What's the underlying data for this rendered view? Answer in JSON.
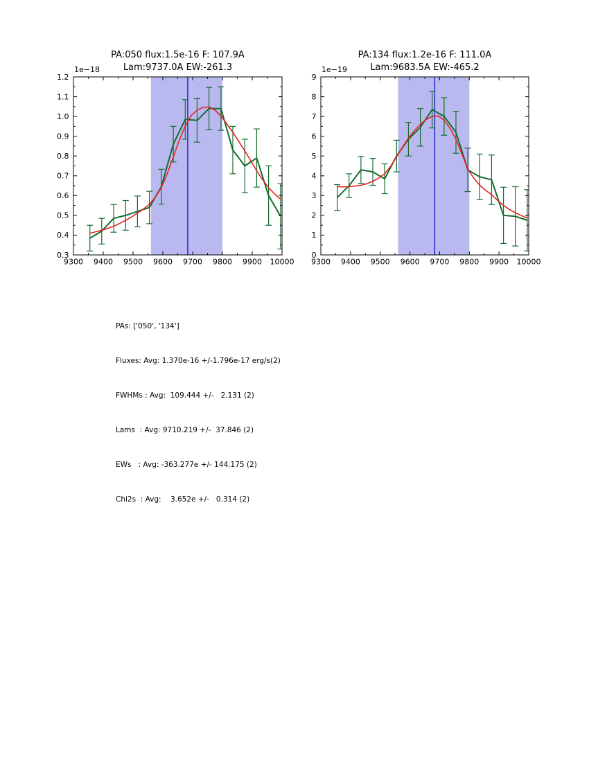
{
  "colors": {
    "background": "#ffffff",
    "data_line": "#146b2d",
    "fit_line": "#e62222",
    "band_fill": "#b9b9f0",
    "center_line": "#1111cc",
    "axis": "#000000"
  },
  "plots": [
    {
      "title_line1": "PA:050 flux:1.5e-16 F: 107.9A",
      "title_line2": "Lam:9737.0A EW:-261.3",
      "offset_label": "1e−18"
    },
    {
      "title_line1": "PA:134 flux:1.2e-16 F: 111.0A",
      "title_line2": "Lam:9683.5A EW:-465.2",
      "offset_label": "1e−19"
    }
  ],
  "stats": {
    "lines": [
      "PAs: ['050', '134']",
      "Fluxes: Avg: 1.370e-16 +/-1.796e-17 erg/s(2)",
      "FWHMs : Avg:  109.444 +/-   2.131 (2)",
      "Lams  : Avg: 9710.219 +/-  37.846 (2)",
      "EWs   : Avg: -363.277e +/- 144.175 (2)",
      "Chi2s  : Avg:    3.652e +/-   0.314 (2)"
    ]
  },
  "chart_data": [
    {
      "type": "line",
      "title": "PA:050 flux:1.5e-16 F: 107.9A Lam:9737.0A EW:-261.3",
      "xlabel": "",
      "ylabel": "",
      "y_offset_label": "1e−18",
      "xlim": [
        9300,
        10000
      ],
      "ylim": [
        0.3,
        1.2
      ],
      "xtick_values": [
        9300,
        9400,
        9500,
        9600,
        9700,
        9800,
        9900,
        10000
      ],
      "xtick_labels": [
        "9300",
        "9400",
        "9500",
        "9600",
        "9700",
        "9800",
        "9900",
        "10000"
      ],
      "ytick_values": [
        0.3,
        0.4,
        0.5,
        0.6,
        0.7,
        0.8,
        0.9,
        1.0,
        1.1,
        1.2
      ],
      "ytick_labels": [
        "0.3",
        "0.4",
        "0.5",
        "0.6",
        "0.7",
        "0.8",
        "0.9",
        "1.0",
        "1.1",
        "1.2"
      ],
      "minor_xtick_step": 50,
      "minor_ytick_step": 0.05,
      "shaded_band": [
        9560,
        9800
      ],
      "vline_x": 9683.5,
      "grid": false,
      "legend": "none",
      "x": [
        9355,
        9395,
        9435,
        9475,
        9515,
        9555,
        9595,
        9635,
        9675,
        9715,
        9755,
        9795,
        9835,
        9875,
        9915,
        9955,
        9995
      ],
      "series": [
        {
          "name": "observed spectrum (1e-18 erg/s/cm2/A)",
          "role": "data",
          "values": [
            0.385,
            0.42,
            0.485,
            0.5,
            0.52,
            0.54,
            0.645,
            0.86,
            0.985,
            0.98,
            1.04,
            1.04,
            0.83,
            0.75,
            0.79,
            0.6,
            0.495
          ],
          "yerr": [
            0.065,
            0.065,
            0.07,
            0.075,
            0.078,
            0.082,
            0.088,
            0.09,
            0.1,
            0.11,
            0.107,
            0.11,
            0.12,
            0.135,
            0.147,
            0.15,
            0.165
          ]
        },
        {
          "name": "gaussian fit",
          "role": "fit",
          "x": [
            9355,
            9375,
            9395,
            9415,
            9435,
            9455,
            9475,
            9495,
            9515,
            9535,
            9555,
            9575,
            9595,
            9615,
            9635,
            9655,
            9675,
            9695,
            9715,
            9735,
            9755,
            9775,
            9795,
            9815,
            9835,
            9855,
            9875,
            9895,
            9915,
            9935,
            9955,
            9975,
            9995
          ],
          "values": [
            0.41,
            0.417,
            0.425,
            0.434,
            0.445,
            0.459,
            0.475,
            0.492,
            0.512,
            0.532,
            0.556,
            0.592,
            0.64,
            0.712,
            0.795,
            0.878,
            0.952,
            1.005,
            1.032,
            1.046,
            1.048,
            1.032,
            1.002,
            0.962,
            0.92,
            0.874,
            0.826,
            0.776,
            0.726,
            0.68,
            0.64,
            0.608,
            0.582
          ]
        }
      ]
    },
    {
      "type": "line",
      "title": "PA:134 flux:1.2e-16 F: 111.0A Lam:9683.5A EW:-465.2",
      "xlabel": "",
      "ylabel": "",
      "y_offset_label": "1e−19",
      "xlim": [
        9300,
        10000
      ],
      "ylim": [
        0,
        9
      ],
      "xtick_values": [
        9300,
        9400,
        9500,
        9600,
        9700,
        9800,
        9900,
        10000
      ],
      "xtick_labels": [
        "9300",
        "9400",
        "9500",
        "9600",
        "9700",
        "9800",
        "9900",
        "10000"
      ],
      "ytick_values": [
        0,
        1,
        2,
        3,
        4,
        5,
        6,
        7,
        8,
        9
      ],
      "ytick_labels": [
        "0",
        "1",
        "2",
        "3",
        "4",
        "5",
        "6",
        "7",
        "8",
        "9"
      ],
      "minor_xtick_step": 50,
      "minor_ytick_step": 0.5,
      "shaded_band": [
        9560,
        9800
      ],
      "vline_x": 9683.5,
      "grid": false,
      "legend": "none",
      "x": [
        9355,
        9395,
        9435,
        9475,
        9515,
        9555,
        9595,
        9635,
        9675,
        9715,
        9755,
        9795,
        9835,
        9875,
        9915,
        9955,
        9995
      ],
      "series": [
        {
          "name": "observed spectrum (1e-19 erg/s/cm2/A)",
          "role": "data",
          "values": [
            2.9,
            3.5,
            4.3,
            4.2,
            3.85,
            5.0,
            5.85,
            6.45,
            7.35,
            7.0,
            6.2,
            4.3,
            3.95,
            3.8,
            2.0,
            1.95,
            1.75
          ],
          "yerr": [
            0.65,
            0.6,
            0.68,
            0.68,
            0.75,
            0.8,
            0.85,
            0.95,
            0.93,
            0.95,
            1.06,
            1.1,
            1.15,
            1.25,
            1.42,
            1.5,
            1.55
          ]
        },
        {
          "name": "gaussian fit",
          "role": "fit",
          "x": [
            9355,
            9375,
            9395,
            9415,
            9435,
            9455,
            9475,
            9495,
            9515,
            9535,
            9555,
            9575,
            9595,
            9615,
            9635,
            9655,
            9675,
            9695,
            9715,
            9735,
            9755,
            9775,
            9795,
            9815,
            9835,
            9855,
            9875,
            9895,
            9915,
            9935,
            9955,
            9975,
            9995
          ],
          "values": [
            3.45,
            3.44,
            3.45,
            3.48,
            3.52,
            3.6,
            3.72,
            3.89,
            4.1,
            4.48,
            4.95,
            5.45,
            5.9,
            6.28,
            6.6,
            6.85,
            7.0,
            7.03,
            6.82,
            6.4,
            5.85,
            5.1,
            4.35,
            3.88,
            3.52,
            3.26,
            3.05,
            2.76,
            2.5,
            2.3,
            2.13,
            1.99,
            1.86
          ]
        }
      ]
    }
  ]
}
